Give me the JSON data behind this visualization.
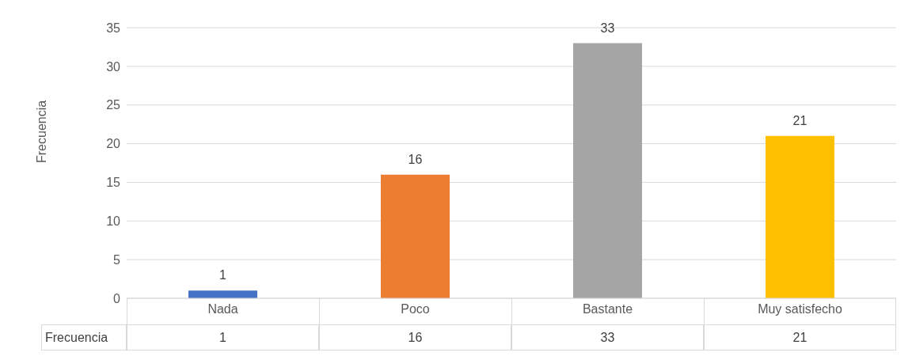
{
  "chart_data": {
    "type": "bar",
    "ylabel": "Frecuencia",
    "categories": [
      "Nada",
      "Poco",
      "Bastante",
      "Muy satisfecho"
    ],
    "series": [
      {
        "name": "Frecuencia",
        "colors": [
          "#4472c4",
          "#ed7d31",
          "#a5a5a5",
          "#ffc000"
        ],
        "values": [
          1,
          16,
          33,
          21
        ],
        "value_labels": [
          "1",
          "16",
          "33",
          "21"
        ]
      }
    ],
    "ylim": [
      0,
      35
    ],
    "yticks": [
      0,
      5,
      10,
      15,
      20,
      25,
      30,
      35
    ],
    "grid": "y",
    "data_labels": true,
    "annotations": [
      "1",
      "16",
      "33",
      "21"
    ]
  }
}
